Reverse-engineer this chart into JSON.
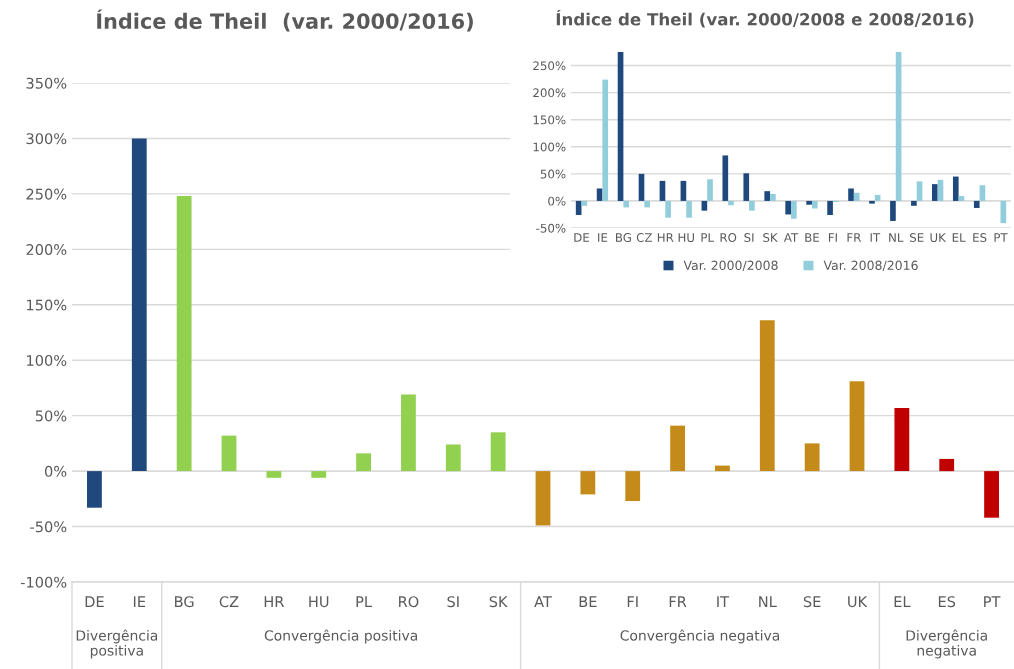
{
  "chart_data": [
    {
      "type": "bar",
      "title": "Índice de Theil  (var. 2000/2016)",
      "categories": [
        "DE",
        "IE",
        "BG",
        "CZ",
        "HR",
        "HU",
        "PL",
        "RO",
        "SI",
        "SK",
        "AT",
        "BE",
        "FI",
        "FR",
        "IT",
        "NL",
        "SE",
        "UK",
        "EL",
        "ES",
        "PT"
      ],
      "values": [
        -33,
        300,
        248,
        32,
        -6,
        -6,
        16,
        69,
        24,
        35,
        -49,
        -21,
        -27,
        41,
        5,
        136,
        25,
        81,
        57,
        11,
        -42
      ],
      "colors": [
        "#1f497d",
        "#1f497d",
        "#92d050",
        "#92d050",
        "#92d050",
        "#92d050",
        "#92d050",
        "#92d050",
        "#92d050",
        "#92d050",
        "#c58b1a",
        "#c58b1a",
        "#c58b1a",
        "#c58b1a",
        "#c58b1a",
        "#c58b1a",
        "#c58b1a",
        "#c58b1a",
        "#c00000",
        "#c00000",
        "#c00000"
      ],
      "ylim": [
        -100,
        350
      ],
      "yticks": [
        {
          "value": -100,
          "label": "-100%"
        },
        {
          "value": -50,
          "label": "-50%"
        },
        {
          "value": 0,
          "label": "0%"
        },
        {
          "value": 50,
          "label": "50%"
        },
        {
          "value": 100,
          "label": "100%"
        },
        {
          "value": 150,
          "label": "150%"
        },
        {
          "value": 200,
          "label": "200%"
        },
        {
          "value": 250,
          "label": "250%"
        },
        {
          "value": 300,
          "label": "300%"
        },
        {
          "value": 350,
          "label": "350%"
        }
      ],
      "grid": "y",
      "annotations": [
        "Divergência\npositiva",
        "Convergência positiva",
        "Convergência negativa",
        "Divergência\nnegativa"
      ]
    },
    {
      "type": "bar",
      "title": "Índice de Theil (var. 2000/2008 e 2008/2016)",
      "categories": [
        "DE",
        "IE",
        "BG",
        "CZ",
        "HR",
        "HU",
        "PL",
        "RO",
        "SI",
        "SK",
        "AT",
        "BE",
        "FI",
        "FR",
        "IT",
        "NL",
        "SE",
        "UK",
        "EL",
        "ES",
        "PT"
      ],
      "series": [
        {
          "name": "Var. 2000/2008",
          "color": "#1f497d",
          "values": [
            -26,
            23,
            275,
            50,
            37,
            37,
            -18,
            84,
            51,
            18,
            -25,
            -7,
            -26,
            23,
            -5,
            -37,
            -9,
            31,
            45,
            -13,
            null
          ]
        },
        {
          "name": "Var. 2008/2016",
          "color": "#92cddc",
          "values": [
            -9,
            224,
            -12,
            -12,
            -31,
            -31,
            40,
            -8,
            -18,
            13,
            -33,
            -14,
            -2,
            15,
            11,
            275,
            36,
            39,
            9,
            29,
            -41
          ]
        }
      ],
      "ylim": [
        -50,
        275
      ],
      "yticks": [
        {
          "value": -50,
          "label": "-50%"
        },
        {
          "value": 0,
          "label": "0%"
        },
        {
          "value": 50,
          "label": "50%"
        },
        {
          "value": 100,
          "label": "100%"
        },
        {
          "value": 150,
          "label": "150%"
        },
        {
          "value": 200,
          "label": "200%"
        },
        {
          "value": 250,
          "label": "250%"
        }
      ],
      "grid": "y",
      "legend": "bottom"
    }
  ]
}
